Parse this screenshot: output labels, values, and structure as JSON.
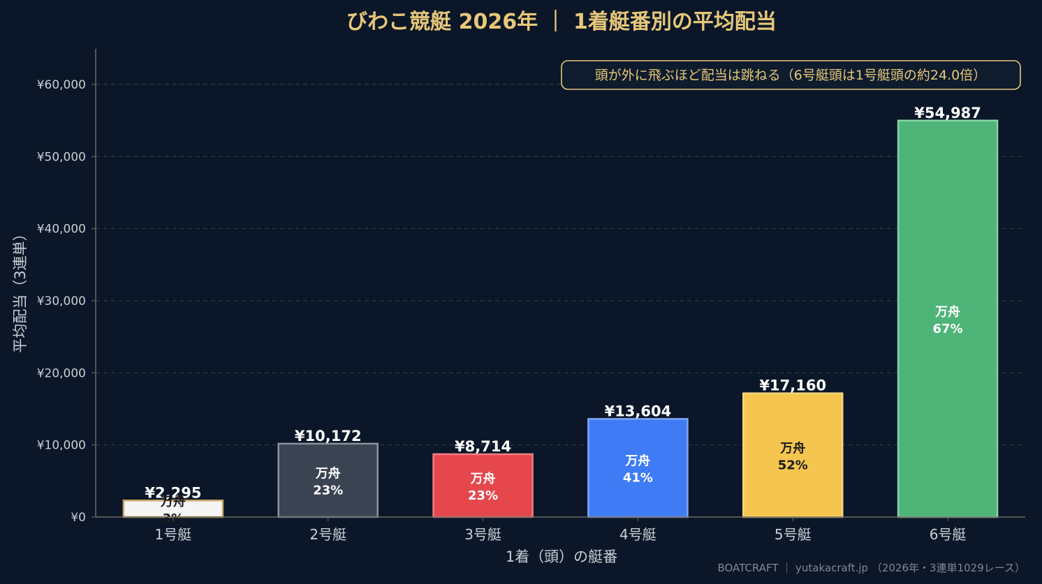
{
  "colors": {
    "background": "#0b1728",
    "gold": "#e7c77a",
    "grid": "#34404d",
    "axis": "#6d6a60"
  },
  "footer": "BOATCRAFT ｜ yutakacraft.jp （2026年・3連単1029レース）",
  "chart_data": {
    "type": "bar",
    "title": "びわこ競艇 2026年 ｜ 1着艇番別の平均配当",
    "xlabel": "1着（頭）の艇番",
    "ylabel": "平均配当（3連単）",
    "ylim": [
      0,
      65000
    ],
    "yticks": [
      0,
      10000,
      20000,
      30000,
      40000,
      50000,
      60000
    ],
    "ytick_labels": [
      "¥0",
      "¥10,000",
      "¥20,000",
      "¥30,000",
      "¥40,000",
      "¥50,000",
      "¥60,000"
    ],
    "grid": true,
    "annotation": "頭が外に飛ぶほど配当は跳ねる（6号艇頭は1号艇頭の約24.0倍）",
    "categories": [
      "1号艇",
      "2号艇",
      "3号艇",
      "4号艇",
      "5号艇",
      "6号艇"
    ],
    "values": [
      2295,
      10172,
      8714,
      13604,
      17160,
      54987
    ],
    "value_labels": [
      "¥2,295",
      "¥10,172",
      "¥8,714",
      "¥13,604",
      "¥17,160",
      "¥54,987"
    ],
    "inner_title": "万舟",
    "manshu_rates": [
      "3%",
      "23%",
      "23%",
      "41%",
      "52%",
      "67%"
    ],
    "bar_colors": [
      "#f5f5f5",
      "#3a4352",
      "#e5474d",
      "#3e7bf5",
      "#f5c64f",
      "#4fb478"
    ],
    "bar_edges": [
      "#c9a96a",
      "#8a93a0",
      "#f07f83",
      "#80a8f7",
      "#f7d67f",
      "#8ad4a7"
    ],
    "inner_text_colors": [
      "#1a1a1a",
      "#ffffff",
      "#ffffff",
      "#ffffff",
      "#1a1a1a",
      "#ffffff"
    ]
  }
}
